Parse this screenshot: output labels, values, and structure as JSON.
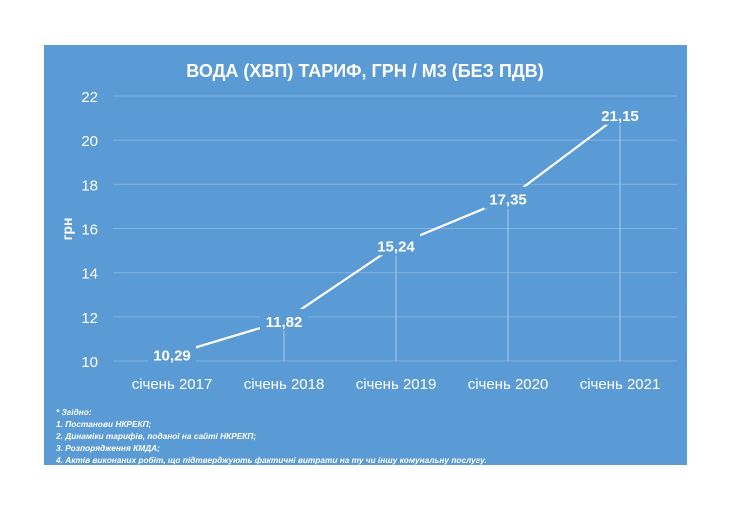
{
  "chart_data": {
    "type": "line",
    "title": "ВОДА (ХВП) ТАРИФ, ГРН / М3 (БЕЗ ПДВ)",
    "ylabel": "грн",
    "xlabel": "",
    "categories": [
      "січень 2017",
      "січень 2018",
      "січень 2019",
      "січень 2020",
      "січень 2021"
    ],
    "values": [
      10.29,
      11.82,
      15.24,
      17.35,
      21.15
    ],
    "data_labels": [
      "10,29",
      "11,82",
      "15,24",
      "17,35",
      "21,15"
    ],
    "ylim": [
      10,
      22
    ],
    "yticks": [
      "10",
      "12",
      "14",
      "16",
      "18",
      "20",
      "22"
    ],
    "grid": true,
    "legend": "none",
    "colors": {
      "background": "#5b9bd5",
      "line": "#ffffff",
      "grid": "#7fb1df"
    }
  },
  "notes": [
    "* Згідно:",
    "1. Постанови НКРЕКП;",
    "2. Динаміки тарифів, поданої на сайті НКРЕКП;",
    "3. Розпорядження КМДА;",
    "4. Актів виконаних робіт, що підтверджують фактичні витрати на ту чи іншу комунальну послугу."
  ]
}
